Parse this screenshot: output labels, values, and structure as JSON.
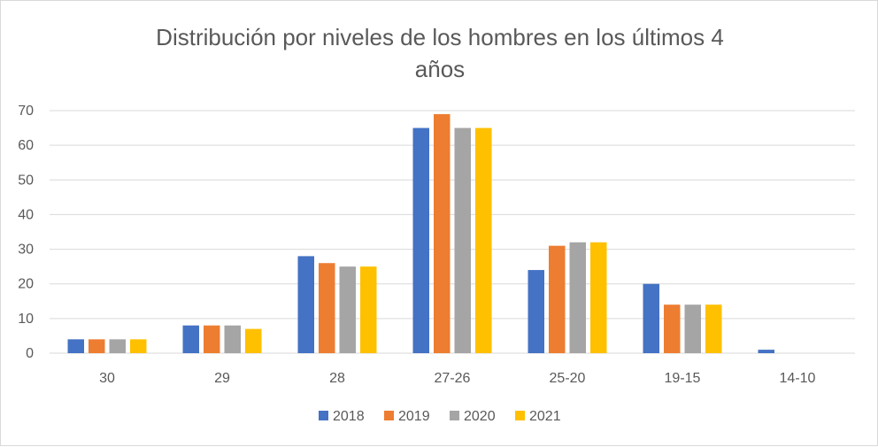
{
  "chart_data": {
    "type": "bar",
    "title_lines": [
      "Distribución por niveles de los hombres en los últimos 4",
      "años"
    ],
    "categories": [
      "30",
      "29",
      "28",
      "27-26",
      "25-20",
      "19-15",
      "14-10"
    ],
    "series": [
      {
        "name": "2018",
        "color": "#4472C4",
        "values": [
          4,
          8,
          28,
          65,
          24,
          20,
          1
        ]
      },
      {
        "name": "2019",
        "color": "#ED7D31",
        "values": [
          4,
          8,
          26,
          69,
          31,
          14,
          0
        ]
      },
      {
        "name": "2020",
        "color": "#A5A5A5",
        "values": [
          4,
          8,
          25,
          65,
          32,
          14,
          0
        ]
      },
      {
        "name": "2021",
        "color": "#FFC000",
        "values": [
          4,
          7,
          25,
          65,
          32,
          14,
          0
        ]
      }
    ],
    "ylim": [
      0,
      70
    ],
    "yticks": [
      0,
      10,
      20,
      30,
      40,
      50,
      60,
      70
    ],
    "grid": true,
    "legend_position": "bottom"
  }
}
